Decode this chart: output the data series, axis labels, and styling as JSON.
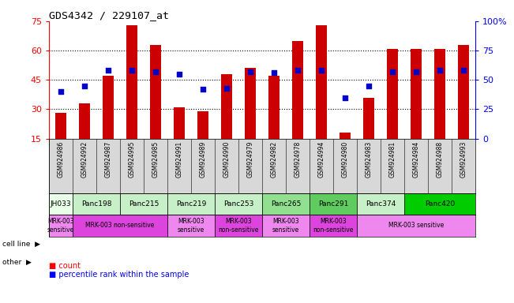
{
  "title": "GDS4342 / 229107_at",
  "gsm_labels": [
    "GSM924986",
    "GSM924992",
    "GSM924987",
    "GSM924995",
    "GSM924985",
    "GSM924991",
    "GSM924989",
    "GSM924990",
    "GSM924979",
    "GSM924982",
    "GSM924978",
    "GSM924994",
    "GSM924980",
    "GSM924983",
    "GSM924981",
    "GSM924984",
    "GSM924988",
    "GSM924993"
  ],
  "bar_heights": [
    28,
    33,
    47,
    73,
    63,
    31,
    29,
    48,
    51,
    47,
    65,
    73,
    18,
    36,
    61,
    61,
    61,
    63
  ],
  "dot_values": [
    40,
    45,
    58,
    58,
    57,
    55,
    42,
    43,
    57,
    56,
    58,
    58,
    35,
    45,
    57,
    57,
    58,
    58
  ],
  "cell_lines": [
    {
      "name": "JH033",
      "start": 0,
      "end": 1,
      "color": "#e8ffe8"
    },
    {
      "name": "Panc198",
      "start": 1,
      "end": 3,
      "color": "#c8f0c8"
    },
    {
      "name": "Panc215",
      "start": 3,
      "end": 5,
      "color": "#c8f0c8"
    },
    {
      "name": "Panc219",
      "start": 5,
      "end": 7,
      "color": "#c8f0c8"
    },
    {
      "name": "Panc253",
      "start": 7,
      "end": 9,
      "color": "#c8f0c8"
    },
    {
      "name": "Panc265",
      "start": 9,
      "end": 11,
      "color": "#90e090"
    },
    {
      "name": "Panc291",
      "start": 11,
      "end": 13,
      "color": "#60cc60"
    },
    {
      "name": "Panc374",
      "start": 13,
      "end": 15,
      "color": "#c8f0c8"
    },
    {
      "name": "Panc420",
      "start": 15,
      "end": 18,
      "color": "#00cc00"
    }
  ],
  "other_rows": [
    {
      "name": "MRK-003\nsensitive",
      "start": 0,
      "end": 1,
      "color": "#ee88ee"
    },
    {
      "name": "MRK-003 non-sensitive",
      "start": 1,
      "end": 5,
      "color": "#dd44dd"
    },
    {
      "name": "MRK-003\nsensitive",
      "start": 5,
      "end": 7,
      "color": "#ee88ee"
    },
    {
      "name": "MRK-003\nnon-sensitive",
      "start": 7,
      "end": 9,
      "color": "#dd44dd"
    },
    {
      "name": "MRK-003\nsensitive",
      "start": 9,
      "end": 11,
      "color": "#ee88ee"
    },
    {
      "name": "MRK-003\nnon-sensitive",
      "start": 11,
      "end": 13,
      "color": "#dd44dd"
    },
    {
      "name": "MRK-003 sensitive",
      "start": 13,
      "end": 18,
      "color": "#ee88ee"
    }
  ],
  "ylim_left": [
    15,
    75
  ],
  "ylim_right": [
    0,
    100
  ],
  "yticks_left": [
    15,
    30,
    45,
    60,
    75
  ],
  "ytick_labels_left": [
    "15",
    "30",
    "45",
    "60",
    "75"
  ],
  "yticks_right": [
    0,
    25,
    50,
    75,
    100
  ],
  "ytick_labels_right": [
    "0",
    "25",
    "50",
    "75",
    "100%"
  ],
  "bar_color": "#cc0000",
  "dot_color": "#0000cc",
  "xticklabel_bg": "#d8d8d8"
}
